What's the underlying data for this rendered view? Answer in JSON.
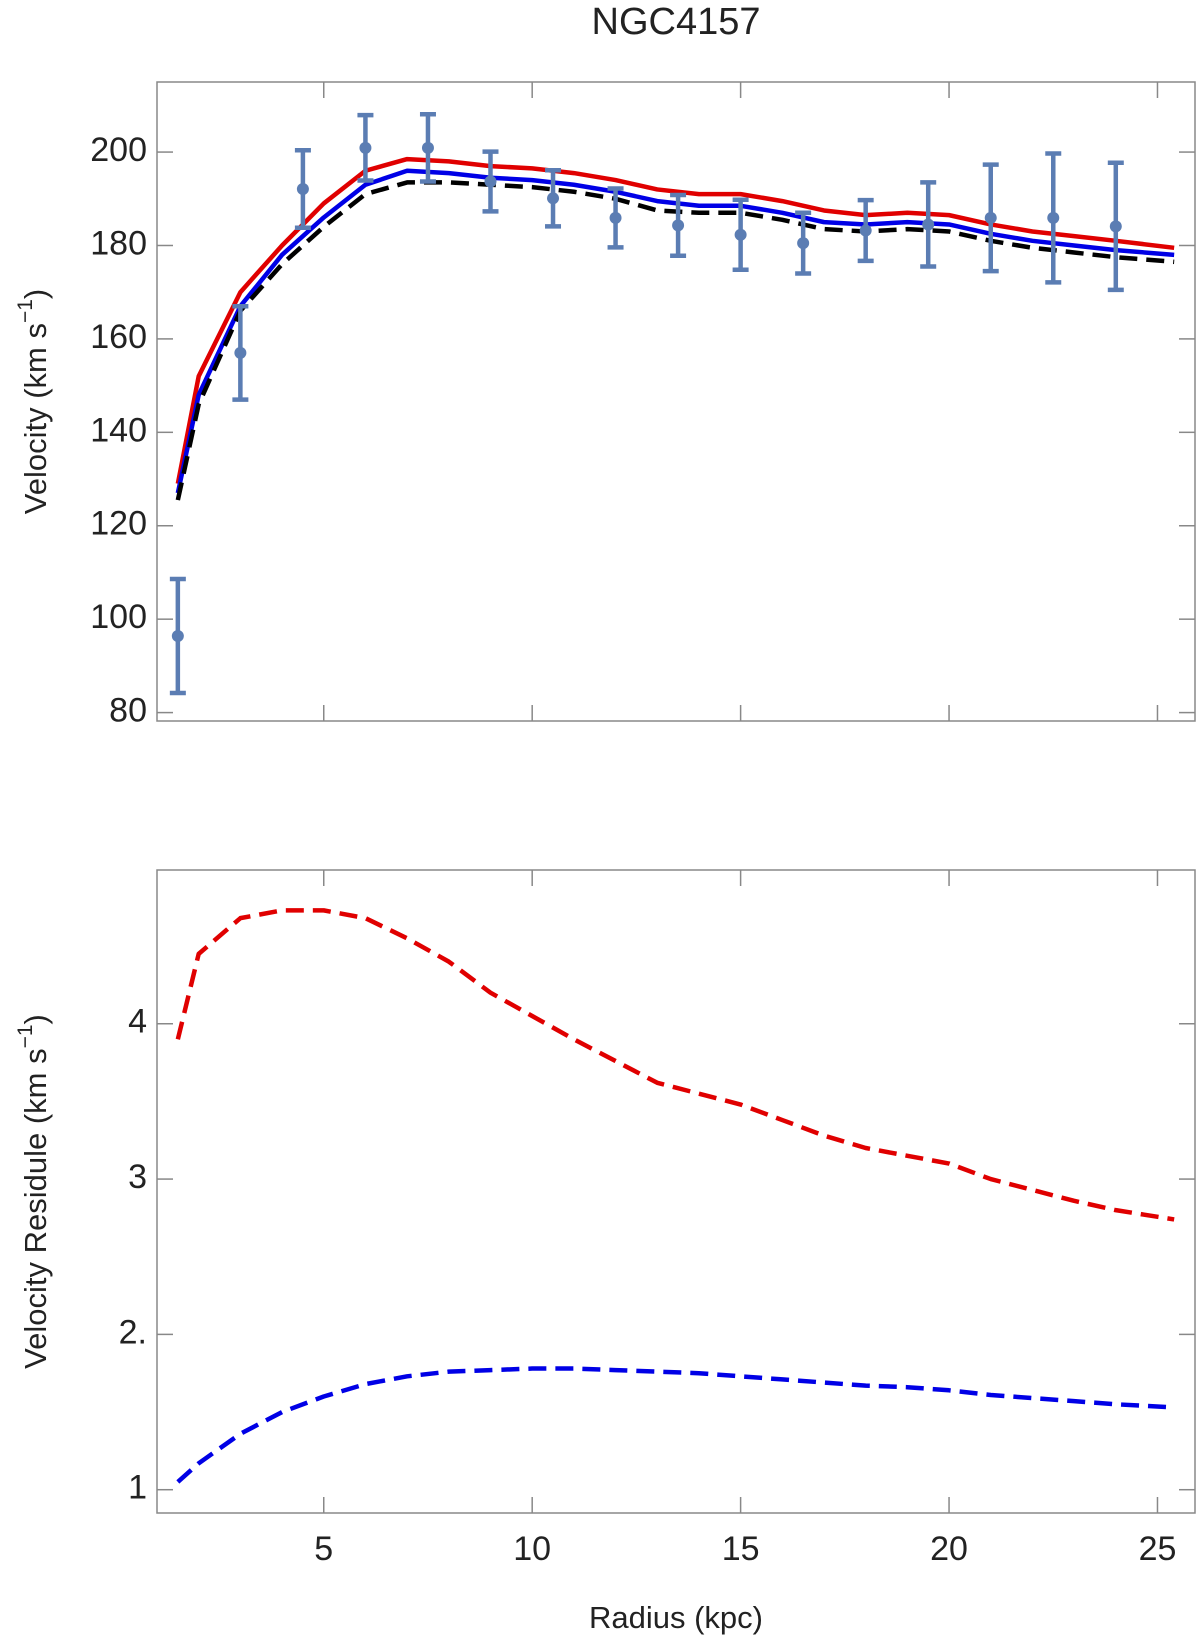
{
  "chart_data": [
    {
      "type": "line",
      "title": "NGC4157",
      "ylabel": [
        "Velocity (km s",
        "−1",
        ")"
      ],
      "xlim": [
        1.0,
        25.9
      ],
      "ylim": [
        78.2,
        215
      ],
      "xticks": [
        5,
        10,
        15,
        20,
        25
      ],
      "show_xtick_labels": false,
      "yticks": [
        80,
        100,
        120,
        140,
        160,
        180,
        200
      ],
      "series": [
        {
          "color": "#e00000",
          "style": "solid",
          "x": [
            1.5,
            2,
            3,
            4,
            5,
            6,
            7,
            8,
            9,
            10,
            11,
            12,
            13,
            14,
            15,
            16,
            17,
            18,
            19,
            20,
            21,
            22,
            23,
            24,
            25.4
          ],
          "values": [
            129,
            152,
            170,
            180,
            189,
            196,
            198.5,
            198,
            197,
            196.5,
            195.5,
            194,
            192,
            191,
            191,
            189.5,
            187.5,
            186.5,
            187,
            186.5,
            184.5,
            183,
            182,
            181,
            179.5
          ]
        },
        {
          "color": "#0000e6",
          "style": "solid",
          "x": [
            1.5,
            2,
            3,
            4,
            5,
            6,
            7,
            8,
            9,
            10,
            11,
            12,
            13,
            14,
            15,
            16,
            17,
            18,
            19,
            20,
            21,
            22,
            23,
            24,
            25.4
          ],
          "values": [
            127,
            148,
            167,
            178,
            186,
            193,
            196,
            195.5,
            194.5,
            194,
            193,
            191.5,
            189.5,
            188.5,
            188.5,
            187,
            185,
            184.5,
            185,
            184.5,
            182.5,
            181,
            180,
            179,
            178
          ]
        },
        {
          "color": "#000000",
          "style": "dashed",
          "x": [
            1.5,
            2,
            3,
            4,
            5,
            6,
            7,
            8,
            9,
            10,
            11,
            12,
            13,
            14,
            15,
            16,
            17,
            18,
            19,
            20,
            21,
            22,
            23,
            24,
            25.4
          ],
          "values": [
            125.5,
            146,
            166,
            176,
            184,
            191,
            193.5,
            193.5,
            193,
            192.5,
            191.5,
            190,
            187.5,
            187,
            187,
            185.5,
            183.5,
            183,
            183.5,
            183,
            181,
            179.5,
            178.5,
            177.5,
            176.5
          ]
        },
        {
          "type": "errorbar",
          "color": "#5b7db3",
          "x": [
            1.5,
            3,
            4.5,
            6,
            7.5,
            9,
            10.5,
            12,
            13.5,
            15,
            16.5,
            18,
            19.5,
            21,
            22.5,
            24
          ],
          "values": [
            96.4,
            157,
            192.1,
            200.9,
            200.9,
            193.7,
            190.1,
            185.9,
            184.3,
            182.3,
            180.5,
            183.2,
            184.5,
            185.9,
            185.9,
            184.1
          ],
          "errors": [
            12.2,
            10,
            8.3,
            7,
            7.2,
            6.4,
            6,
            6.3,
            6.5,
            7.5,
            6.5,
            6.5,
            9,
            11.4,
            13.8,
            13.6
          ]
        }
      ]
    },
    {
      "type": "line",
      "ylabel": [
        "Velocity Residule (km s",
        "−1",
        ")"
      ],
      "xlabel": "Radius (kpc)",
      "xlim": [
        1.0,
        25.9
      ],
      "ylim": [
        0.85,
        4.99
      ],
      "xticks": [
        5,
        10,
        15,
        20,
        25
      ],
      "show_xtick_labels": true,
      "yticks": [
        1,
        {
          "value": 2,
          "label": "2."
        },
        3,
        4
      ],
      "series": [
        {
          "color": "#e00000",
          "style": "dashed",
          "x": [
            1.5,
            2,
            3,
            4,
            5,
            6,
            7,
            8,
            9,
            10,
            11,
            12,
            13,
            14,
            15,
            16,
            17,
            18,
            19,
            20,
            21,
            22,
            23,
            24,
            25.4
          ],
          "values": [
            3.9,
            4.45,
            4.68,
            4.73,
            4.73,
            4.68,
            4.55,
            4.4,
            4.2,
            4.05,
            3.9,
            3.76,
            3.62,
            3.55,
            3.48,
            3.38,
            3.28,
            3.2,
            3.15,
            3.1,
            3.0,
            2.93,
            2.86,
            2.8,
            2.74
          ]
        },
        {
          "color": "#0000e6",
          "style": "dashed",
          "x": [
            1.5,
            2,
            3,
            4,
            5,
            6,
            7,
            8,
            9,
            10,
            11,
            12,
            13,
            14,
            15,
            16,
            17,
            18,
            19,
            20,
            21,
            22,
            23,
            24,
            25.4
          ],
          "values": [
            1.05,
            1.17,
            1.36,
            1.5,
            1.6,
            1.68,
            1.73,
            1.76,
            1.77,
            1.78,
            1.78,
            1.77,
            1.76,
            1.75,
            1.73,
            1.71,
            1.69,
            1.67,
            1.66,
            1.64,
            1.61,
            1.59,
            1.57,
            1.55,
            1.53
          ]
        }
      ]
    }
  ]
}
